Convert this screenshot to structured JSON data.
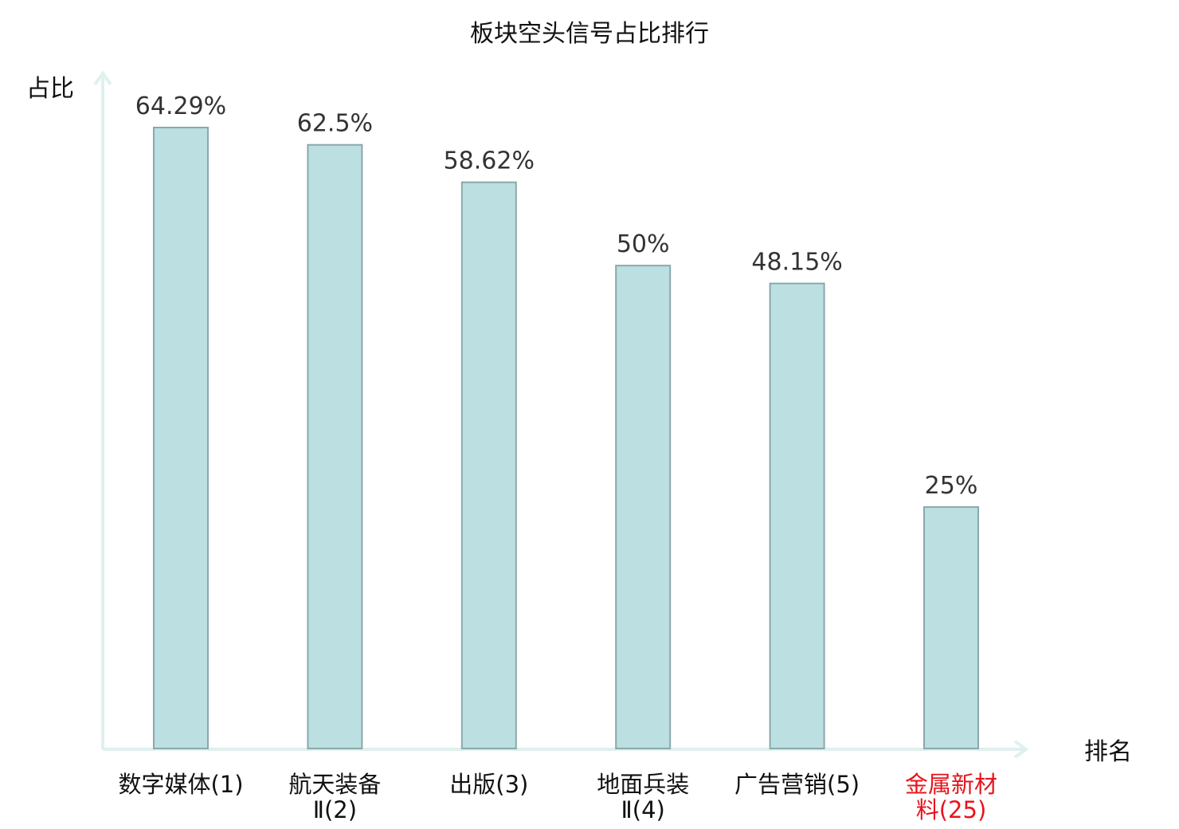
{
  "chart_data": {
    "type": "bar",
    "title": "板块空头信号占比排行",
    "ylabel": "占比",
    "xlabel": "排名",
    "ylim": [
      0,
      0.7
    ],
    "grid": false,
    "categories": [
      [
        "数字媒体(1)"
      ],
      [
        "航天装备",
        "Ⅱ(2)"
      ],
      [
        "出版(3)"
      ],
      [
        "地面兵装",
        "Ⅱ(4)"
      ],
      [
        "广告营销(5)"
      ],
      [
        "金属新材",
        "料(25)"
      ]
    ],
    "values": [
      0.6429,
      0.625,
      0.5862,
      0.5,
      0.4815,
      0.25
    ],
    "value_labels": [
      "64.29%",
      "62.5%",
      "58.62%",
      "50%",
      "48.15%",
      "25%"
    ],
    "highlight_index": 5,
    "colors": {
      "bar_fill": "#bce0e2",
      "bar_stroke": "#8aa8aa",
      "axis": "#dff0ee",
      "highlight_text": "#e8141b"
    }
  }
}
